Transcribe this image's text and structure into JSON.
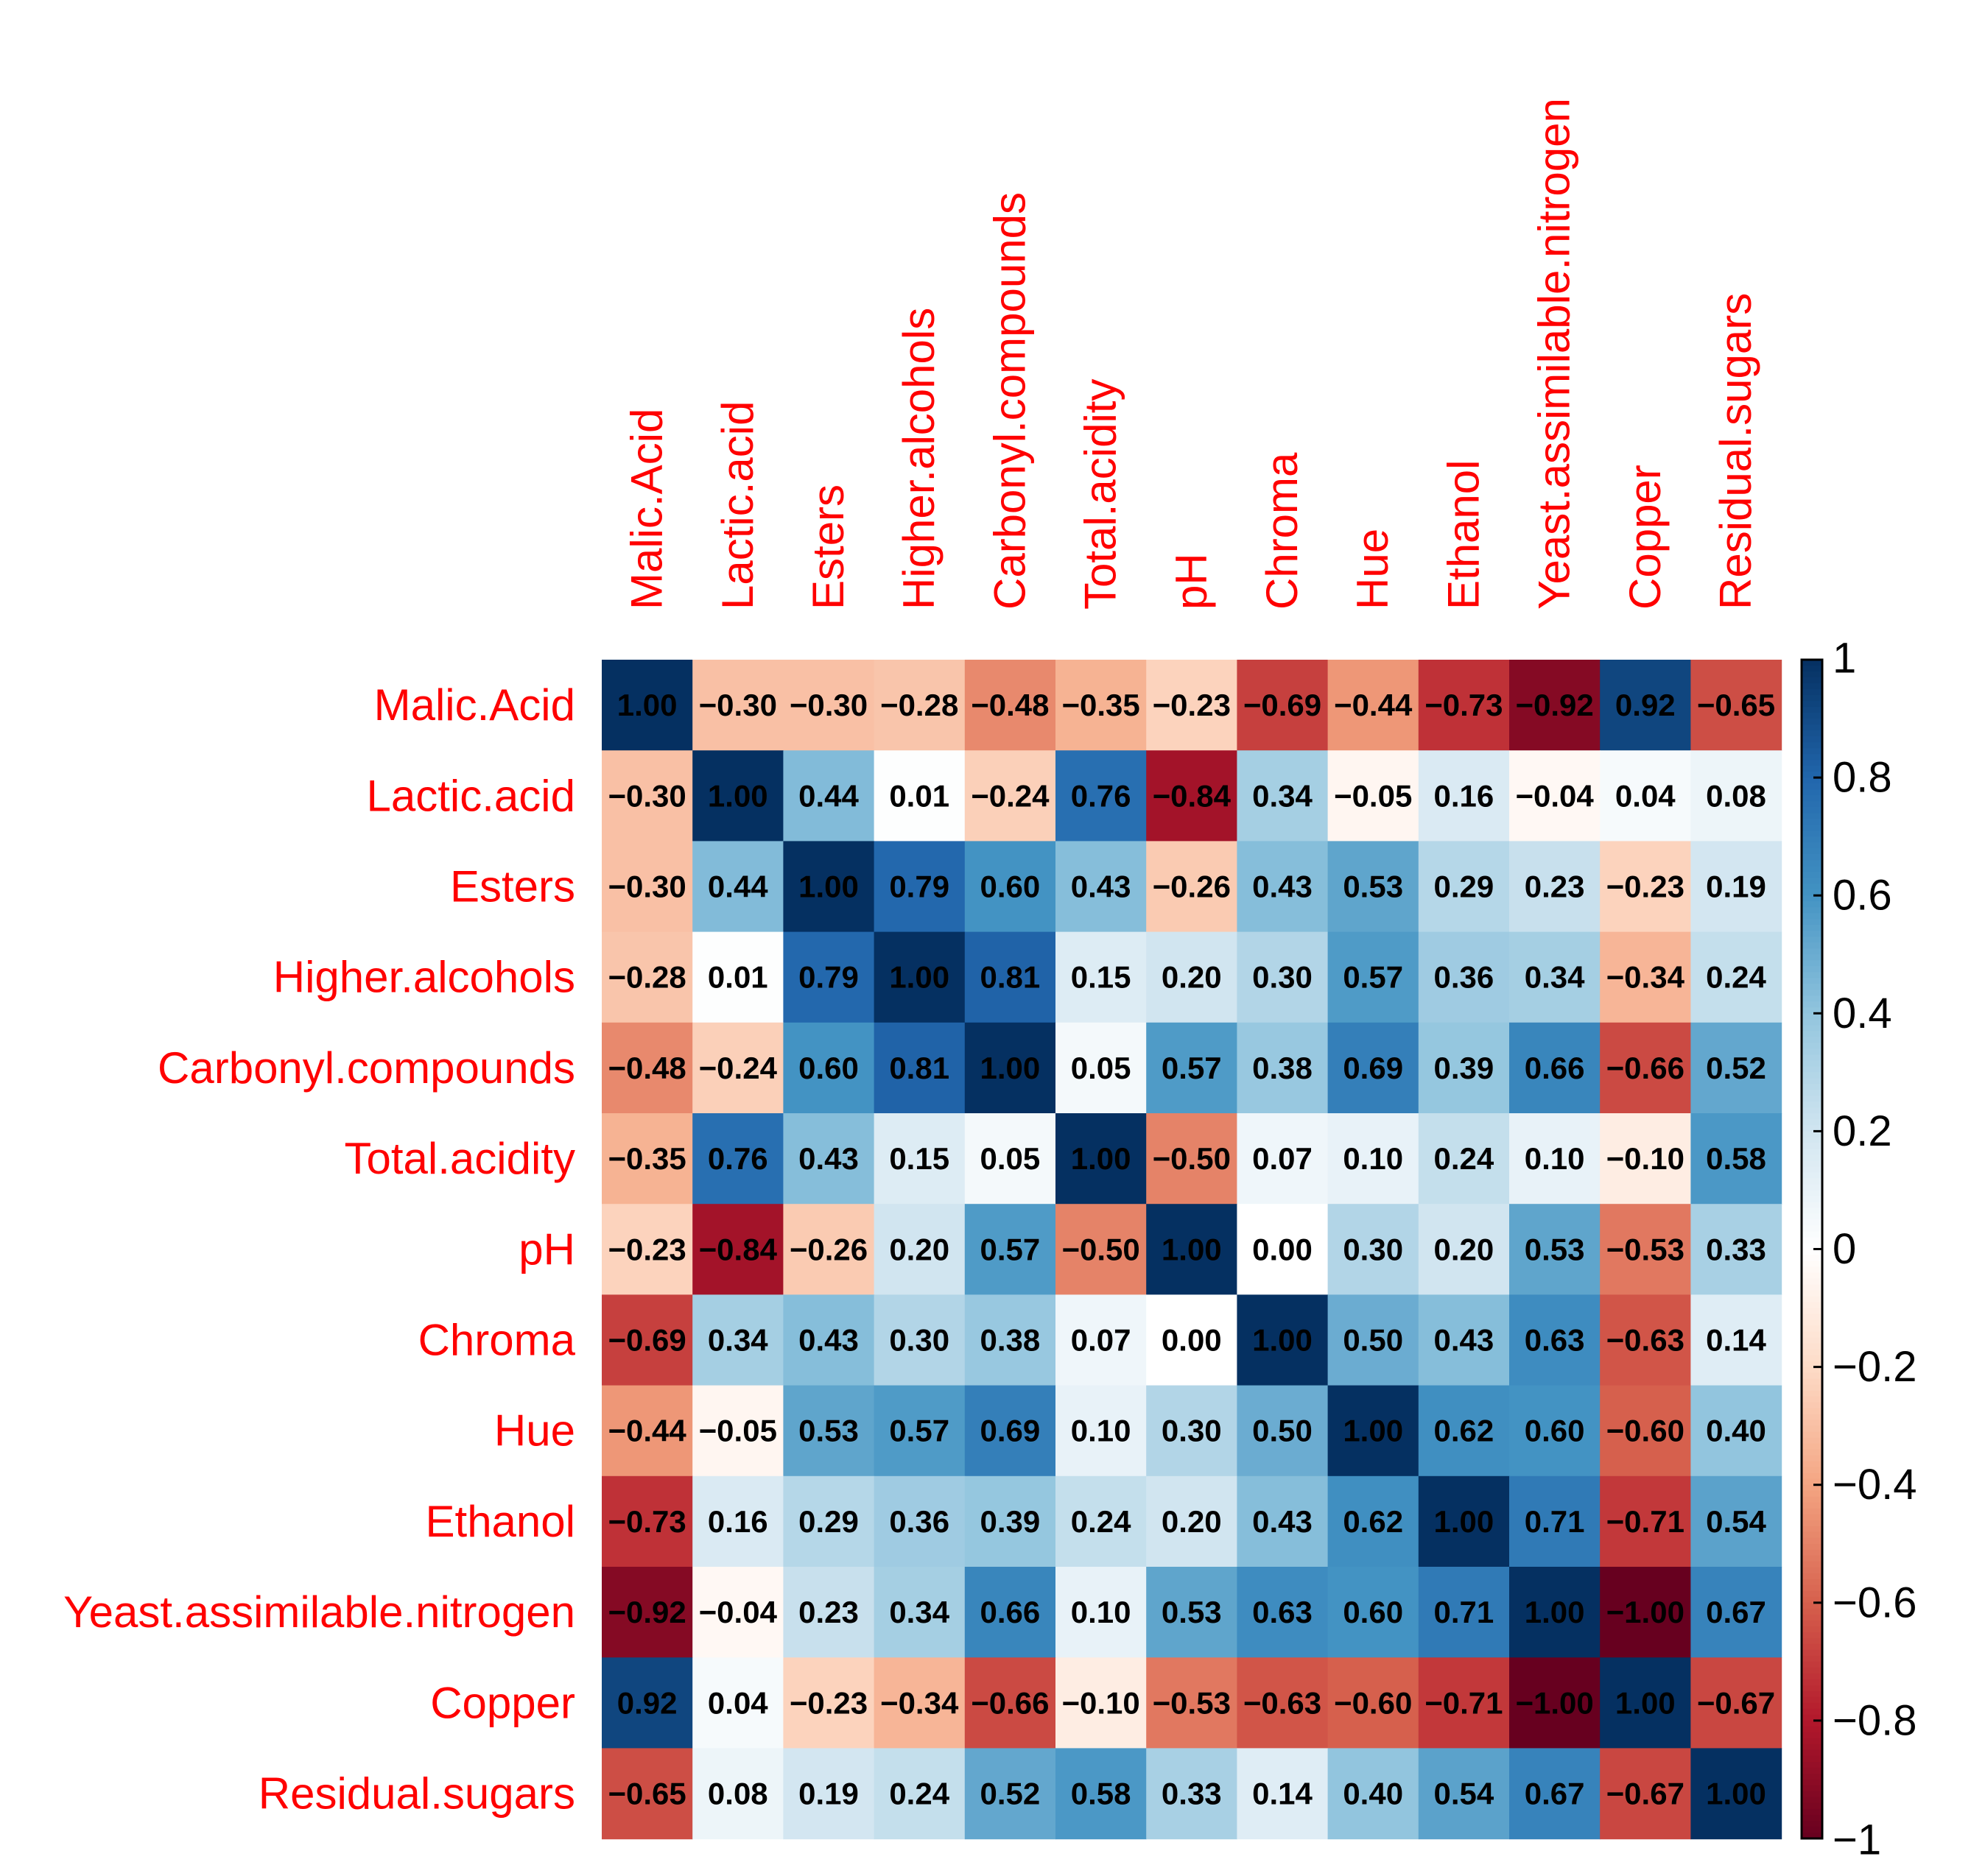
{
  "chart_data": {
    "type": "heatmap",
    "title": "",
    "variables": [
      "Malic.Acid",
      "Lactic.acid",
      "Esters",
      "Higher.alcohols",
      "Carbonyl.compounds",
      "Total.acidity",
      "pH",
      "Chroma",
      "Hue",
      "Ethanol",
      "Yeast.assimilable.nitrogen",
      "Copper",
      "Residual.sugars"
    ],
    "matrix": [
      [
        1.0,
        -0.3,
        -0.3,
        -0.28,
        -0.48,
        -0.35,
        -0.23,
        -0.69,
        -0.44,
        -0.73,
        -0.92,
        0.92,
        -0.65
      ],
      [
        -0.3,
        1.0,
        0.44,
        0.01,
        -0.24,
        0.76,
        -0.84,
        0.34,
        -0.05,
        0.16,
        -0.04,
        0.04,
        0.08
      ],
      [
        -0.3,
        0.44,
        1.0,
        0.79,
        0.6,
        0.43,
        -0.26,
        0.43,
        0.53,
        0.29,
        0.23,
        -0.23,
        0.19
      ],
      [
        -0.28,
        0.01,
        0.79,
        1.0,
        0.81,
        0.15,
        0.2,
        0.3,
        0.57,
        0.36,
        0.34,
        -0.34,
        0.24
      ],
      [
        -0.48,
        -0.24,
        0.6,
        0.81,
        1.0,
        0.05,
        0.57,
        0.38,
        0.69,
        0.39,
        0.66,
        -0.66,
        0.52
      ],
      [
        -0.35,
        0.76,
        0.43,
        0.15,
        0.05,
        1.0,
        -0.5,
        0.07,
        0.1,
        0.24,
        0.1,
        -0.1,
        0.58
      ],
      [
        -0.23,
        -0.84,
        -0.26,
        0.2,
        0.57,
        -0.5,
        1.0,
        0.0,
        0.3,
        0.2,
        0.53,
        -0.53,
        0.33
      ],
      [
        -0.69,
        0.34,
        0.43,
        0.3,
        0.38,
        0.07,
        0.0,
        1.0,
        0.5,
        0.43,
        0.63,
        -0.63,
        0.14
      ],
      [
        -0.44,
        -0.05,
        0.53,
        0.57,
        0.69,
        0.1,
        0.3,
        0.5,
        1.0,
        0.62,
        0.6,
        -0.6,
        0.4
      ],
      [
        -0.73,
        0.16,
        0.29,
        0.36,
        0.39,
        0.24,
        0.2,
        0.43,
        0.62,
        1.0,
        0.71,
        -0.71,
        0.54
      ],
      [
        -0.92,
        -0.04,
        0.23,
        0.34,
        0.66,
        0.1,
        0.53,
        0.63,
        0.6,
        0.71,
        1.0,
        -1.0,
        0.67
      ],
      [
        0.92,
        0.04,
        -0.23,
        -0.34,
        -0.66,
        -0.1,
        -0.53,
        -0.63,
        -0.6,
        -0.71,
        -1.0,
        1.0,
        -0.67
      ],
      [
        -0.65,
        0.08,
        0.19,
        0.24,
        0.52,
        0.58,
        0.33,
        0.14,
        0.4,
        0.54,
        0.67,
        -0.67,
        1.0
      ]
    ],
    "color_scale": {
      "range": [
        -1,
        1
      ],
      "stops": [
        {
          "value": -1.0,
          "color": "#67001f"
        },
        {
          "value": -0.8,
          "color": "#b2182b"
        },
        {
          "value": -0.6,
          "color": "#d6604d"
        },
        {
          "value": -0.4,
          "color": "#f4a582"
        },
        {
          "value": -0.2,
          "color": "#fddbc7"
        },
        {
          "value": 0.0,
          "color": "#ffffff"
        },
        {
          "value": 0.2,
          "color": "#d1e5f0"
        },
        {
          "value": 0.4,
          "color": "#92c5de"
        },
        {
          "value": 0.6,
          "color": "#4393c3"
        },
        {
          "value": 0.8,
          "color": "#2166ac"
        },
        {
          "value": 1.0,
          "color": "#053061"
        }
      ]
    },
    "legend": {
      "ticks": [
        1,
        0.8,
        0.6,
        0.4,
        0.2,
        0,
        -0.2,
        -0.4,
        -0.6,
        -0.8,
        -1
      ],
      "tick_labels": [
        "1",
        "0.8",
        "0.6",
        "0.4",
        "0.2",
        "0",
        "−0.2",
        "−0.4",
        "−0.6",
        "−0.8",
        "−1"
      ],
      "placement": "right"
    },
    "label_color": "#ff0000",
    "value_color": "#000000"
  }
}
